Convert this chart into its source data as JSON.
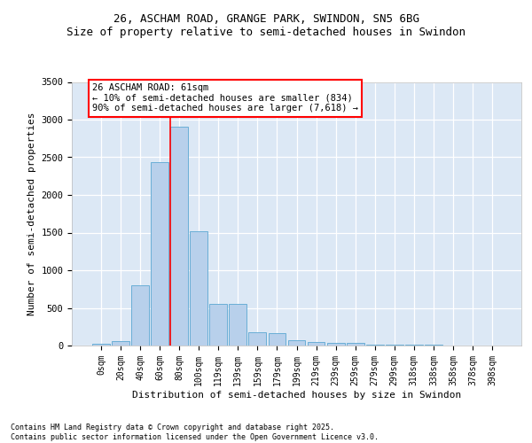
{
  "title_line1": "26, ASCHAM ROAD, GRANGE PARK, SWINDON, SN5 6BG",
  "title_line2": "Size of property relative to semi-detached houses in Swindon",
  "xlabel": "Distribution of semi-detached houses by size in Swindon",
  "ylabel": "Number of semi-detached properties",
  "annotation_title": "26 ASCHAM ROAD: 61sqm",
  "annotation_line2": "← 10% of semi-detached houses are smaller (834)",
  "annotation_line3": "90% of semi-detached houses are larger (7,618) →",
  "footer_line1": "Contains HM Land Registry data © Crown copyright and database right 2025.",
  "footer_line2": "Contains public sector information licensed under the Open Government Licence v3.0.",
  "categories": [
    "0sqm",
    "20sqm",
    "40sqm",
    "60sqm",
    "80sqm",
    "100sqm",
    "119sqm",
    "139sqm",
    "159sqm",
    "179sqm",
    "199sqm",
    "219sqm",
    "239sqm",
    "259sqm",
    "279sqm",
    "299sqm",
    "318sqm",
    "338sqm",
    "358sqm",
    "378sqm",
    "398sqm"
  ],
  "bar_values": [
    20,
    60,
    800,
    2430,
    2900,
    1520,
    550,
    550,
    175,
    170,
    75,
    50,
    40,
    30,
    8,
    8,
    8,
    8,
    0,
    0,
    0
  ],
  "bar_color": "#b8d0eb",
  "bar_edge_color": "#6aaed6",
  "red_line_index": 4,
  "background_color": "#dce8f5",
  "ylim_max": 3500,
  "yticks": [
    0,
    500,
    1000,
    1500,
    2000,
    2500,
    3000,
    3500
  ],
  "title_fontsize": 9,
  "axis_fontsize": 8,
  "tick_fontsize": 7.5,
  "xtick_fontsize": 7
}
